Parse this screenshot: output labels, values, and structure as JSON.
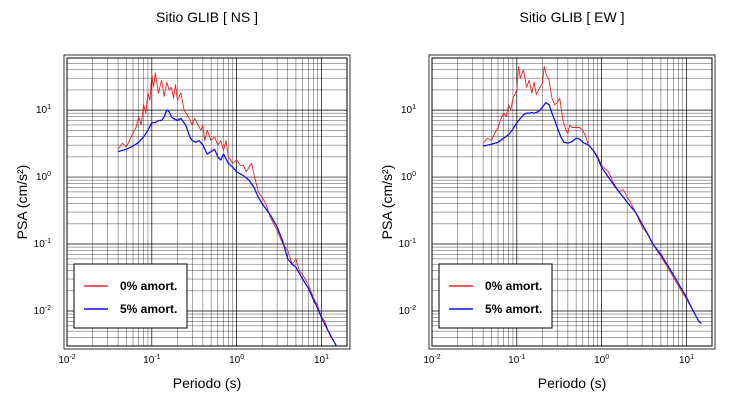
{
  "colors": {
    "undamped": "#ee2222",
    "damped": "#1111ee",
    "grid": "#000000",
    "frame": "#000000"
  },
  "chart_data": [
    {
      "type": "line",
      "title": "Sitio GLIB [ NS ]",
      "xlabel": "Periodo (s)",
      "ylabel": "PSA (cm/s²)",
      "xscale": "log",
      "yscale": "log",
      "xlim": [
        0.01,
        20
      ],
      "ylim": [
        0.003,
        60
      ],
      "grid": true,
      "legend_position": "bottom-left",
      "xticks": [
        {
          "value": 0.01,
          "base": "10",
          "exp": "-2"
        },
        {
          "value": 0.1,
          "base": "10",
          "exp": "-1"
        },
        {
          "value": 1,
          "base": "10",
          "exp": "0"
        },
        {
          "value": 10,
          "base": "10",
          "exp": "1"
        }
      ],
      "yticks": [
        {
          "value": 0.01,
          "base": "10",
          "exp": "-2"
        },
        {
          "value": 0.1,
          "base": "10",
          "exp": "-1"
        },
        {
          "value": 1,
          "base": "10",
          "exp": "0"
        },
        {
          "value": 10,
          "base": "10",
          "exp": "1"
        }
      ],
      "series": [
        {
          "name": "0% amort.",
          "color": "#ee2222",
          "points": [
            [
              0.04,
              2.6
            ],
            [
              0.045,
              3.2
            ],
            [
              0.05,
              2.8
            ],
            [
              0.055,
              3.6
            ],
            [
              0.06,
              4.5
            ],
            [
              0.065,
              5.5
            ],
            [
              0.07,
              8
            ],
            [
              0.075,
              6
            ],
            [
              0.08,
              12
            ],
            [
              0.085,
              9
            ],
            [
              0.09,
              18
            ],
            [
              0.095,
              14
            ],
            [
              0.1,
              34
            ],
            [
              0.105,
              22
            ],
            [
              0.11,
              36
            ],
            [
              0.12,
              18
            ],
            [
              0.13,
              28
            ],
            [
              0.14,
              16
            ],
            [
              0.15,
              26
            ],
            [
              0.16,
              20
            ],
            [
              0.17,
              22
            ],
            [
              0.18,
              15
            ],
            [
              0.19,
              24
            ],
            [
              0.2,
              14
            ],
            [
              0.22,
              18
            ],
            [
              0.24,
              10
            ],
            [
              0.27,
              8
            ],
            [
              0.3,
              6
            ],
            [
              0.32,
              7.5
            ],
            [
              0.35,
              6
            ],
            [
              0.38,
              5
            ],
            [
              0.4,
              6
            ],
            [
              0.42,
              3.5
            ],
            [
              0.45,
              5
            ],
            [
              0.5,
              3.5
            ],
            [
              0.55,
              4
            ],
            [
              0.6,
              3
            ],
            [
              0.65,
              3.5
            ],
            [
              0.7,
              2.5
            ],
            [
              0.75,
              3.5
            ],
            [
              0.8,
              2
            ],
            [
              0.9,
              1.6
            ],
            [
              1,
              1.8
            ],
            [
              1.1,
              1.5
            ],
            [
              1.2,
              1.5
            ],
            [
              1.3,
              1.2
            ],
            [
              1.4,
              1.4
            ],
            [
              1.5,
              1.6
            ],
            [
              1.6,
              1.1
            ],
            [
              1.8,
              0.6
            ],
            [
              2,
              0.5
            ],
            [
              2.2,
              0.4
            ],
            [
              2.5,
              0.25
            ],
            [
              3,
              0.16
            ],
            [
              3.5,
              0.1
            ],
            [
              4,
              0.08
            ],
            [
              4.5,
              0.05
            ],
            [
              5,
              0.06
            ],
            [
              5.5,
              0.04
            ],
            [
              6,
              0.035
            ],
            [
              7,
              0.025
            ],
            [
              8,
              0.016
            ],
            [
              9,
              0.012
            ],
            [
              10,
              0.008
            ],
            [
              11,
              0.007
            ],
            [
              12,
              0.005
            ],
            [
              13,
              0.004
            ],
            [
              14,
              0.0035
            ],
            [
              15,
              0.003
            ]
          ]
        },
        {
          "name": "5% amort.",
          "color": "#1111ee",
          "points": [
            [
              0.04,
              2.4
            ],
            [
              0.05,
              2.6
            ],
            [
              0.06,
              2.9
            ],
            [
              0.07,
              3.3
            ],
            [
              0.08,
              4
            ],
            [
              0.09,
              5
            ],
            [
              0.1,
              6.5
            ],
            [
              0.11,
              6.5
            ],
            [
              0.12,
              7
            ],
            [
              0.13,
              7
            ],
            [
              0.14,
              8
            ],
            [
              0.15,
              10
            ],
            [
              0.16,
              9.5
            ],
            [
              0.17,
              8
            ],
            [
              0.18,
              7.5
            ],
            [
              0.2,
              7
            ],
            [
              0.22,
              7.5
            ],
            [
              0.25,
              6
            ],
            [
              0.28,
              4
            ],
            [
              0.3,
              3.5
            ],
            [
              0.33,
              3.3
            ],
            [
              0.36,
              3.5
            ],
            [
              0.4,
              3
            ],
            [
              0.45,
              2.2
            ],
            [
              0.5,
              2.4
            ],
            [
              0.55,
              2.6
            ],
            [
              0.6,
              2
            ],
            [
              0.65,
              1.8
            ],
            [
              0.7,
              2.2
            ],
            [
              0.8,
              1.6
            ],
            [
              0.9,
              1.4
            ],
            [
              1,
              1.2
            ],
            [
              1.2,
              1.05
            ],
            [
              1.4,
              0.9
            ],
            [
              1.6,
              0.7
            ],
            [
              1.8,
              0.5
            ],
            [
              2,
              0.4
            ],
            [
              2.5,
              0.27
            ],
            [
              3,
              0.18
            ],
            [
              3.5,
              0.11
            ],
            [
              4,
              0.06
            ],
            [
              4.5,
              0.05
            ],
            [
              5,
              0.045
            ],
            [
              6,
              0.03
            ],
            [
              7,
              0.022
            ],
            [
              8,
              0.015
            ],
            [
              9,
              0.011
            ],
            [
              10,
              0.008
            ],
            [
              12,
              0.005
            ],
            [
              14,
              0.0035
            ],
            [
              15,
              0.003
            ]
          ]
        }
      ]
    },
    {
      "type": "line",
      "title": "Sitio GLIB [ EW ]",
      "xlabel": "Periodo (s)",
      "ylabel": "PSA (cm/s²)",
      "xscale": "log",
      "yscale": "log",
      "xlim": [
        0.01,
        20
      ],
      "ylim": [
        0.003,
        60
      ],
      "grid": true,
      "legend_position": "bottom-left",
      "xticks": [
        {
          "value": 0.01,
          "base": "10",
          "exp": "-2"
        },
        {
          "value": 0.1,
          "base": "10",
          "exp": "-1"
        },
        {
          "value": 1,
          "base": "10",
          "exp": "0"
        },
        {
          "value": 10,
          "base": "10",
          "exp": "1"
        }
      ],
      "yticks": [
        {
          "value": 0.01,
          "base": "10",
          "exp": "-2"
        },
        {
          "value": 0.1,
          "base": "10",
          "exp": "-1"
        },
        {
          "value": 1,
          "base": "10",
          "exp": "0"
        },
        {
          "value": 10,
          "base": "10",
          "exp": "1"
        }
      ],
      "series": [
        {
          "name": "0% amort.",
          "color": "#ee2222",
          "points": [
            [
              0.04,
              3.2
            ],
            [
              0.045,
              3.8
            ],
            [
              0.05,
              3.5
            ],
            [
              0.055,
              4.5
            ],
            [
              0.06,
              5.5
            ],
            [
              0.065,
              7.5
            ],
            [
              0.07,
              9
            ],
            [
              0.075,
              8
            ],
            [
              0.08,
              12
            ],
            [
              0.085,
              10
            ],
            [
              0.09,
              15
            ],
            [
              0.1,
              20
            ],
            [
              0.105,
              45
            ],
            [
              0.11,
              30
            ],
            [
              0.12,
              40
            ],
            [
              0.13,
              22
            ],
            [
              0.14,
              28
            ],
            [
              0.15,
              18
            ],
            [
              0.16,
              26
            ],
            [
              0.17,
              17
            ],
            [
              0.18,
              20
            ],
            [
              0.2,
              25
            ],
            [
              0.21,
              45
            ],
            [
              0.22,
              35
            ],
            [
              0.24,
              28
            ],
            [
              0.26,
              15
            ],
            [
              0.28,
              12
            ],
            [
              0.3,
              13
            ],
            [
              0.32,
              15
            ],
            [
              0.35,
              7
            ],
            [
              0.38,
              5
            ],
            [
              0.4,
              4.5
            ],
            [
              0.42,
              6
            ],
            [
              0.45,
              5.5
            ],
            [
              0.5,
              5.5
            ],
            [
              0.55,
              5.5
            ],
            [
              0.6,
              5
            ],
            [
              0.65,
              4
            ],
            [
              0.7,
              3
            ],
            [
              0.8,
              2.5
            ],
            [
              0.9,
              2
            ],
            [
              1,
              1.5
            ],
            [
              1.2,
              1.2
            ],
            [
              1.4,
              0.8
            ],
            [
              1.6,
              0.6
            ],
            [
              1.8,
              0.65
            ],
            [
              2,
              0.5
            ],
            [
              2.2,
              0.42
            ],
            [
              2.5,
              0.3
            ],
            [
              3,
              0.18
            ],
            [
              3.5,
              0.14
            ],
            [
              4,
              0.1
            ],
            [
              5,
              0.065
            ],
            [
              6,
              0.045
            ],
            [
              7,
              0.032
            ],
            [
              8,
              0.024
            ],
            [
              10,
              0.015
            ],
            [
              12,
              0.01
            ],
            [
              14,
              0.007
            ],
            [
              15,
              0.0065
            ]
          ]
        },
        {
          "name": "5% amort.",
          "color": "#1111ee",
          "points": [
            [
              0.04,
              2.9
            ],
            [
              0.05,
              3.1
            ],
            [
              0.06,
              3.3
            ],
            [
              0.07,
              3.8
            ],
            [
              0.08,
              4.3
            ],
            [
              0.09,
              5.2
            ],
            [
              0.1,
              6.5
            ],
            [
              0.11,
              7.5
            ],
            [
              0.12,
              8.5
            ],
            [
              0.13,
              9
            ],
            [
              0.14,
              9
            ],
            [
              0.15,
              9.2
            ],
            [
              0.16,
              9
            ],
            [
              0.18,
              9.5
            ],
            [
              0.2,
              11
            ],
            [
              0.22,
              13
            ],
            [
              0.24,
              12
            ],
            [
              0.26,
              9
            ],
            [
              0.28,
              7
            ],
            [
              0.3,
              5.5
            ],
            [
              0.33,
              4
            ],
            [
              0.36,
              3.3
            ],
            [
              0.4,
              3.2
            ],
            [
              0.45,
              3.4
            ],
            [
              0.5,
              3.8
            ],
            [
              0.55,
              3.7
            ],
            [
              0.6,
              3.3
            ],
            [
              0.7,
              3
            ],
            [
              0.8,
              2.5
            ],
            [
              0.9,
              1.9
            ],
            [
              1,
              1.4
            ],
            [
              1.2,
              1
            ],
            [
              1.4,
              0.75
            ],
            [
              1.6,
              0.6
            ],
            [
              1.8,
              0.5
            ],
            [
              2,
              0.42
            ],
            [
              2.5,
              0.3
            ],
            [
              3,
              0.2
            ],
            [
              3.5,
              0.14
            ],
            [
              4,
              0.1
            ],
            [
              5,
              0.07
            ],
            [
              6,
              0.048
            ],
            [
              7,
              0.035
            ],
            [
              8,
              0.026
            ],
            [
              10,
              0.016
            ],
            [
              12,
              0.01
            ],
            [
              14,
              0.007
            ],
            [
              15,
              0.0065
            ]
          ]
        }
      ]
    }
  ]
}
